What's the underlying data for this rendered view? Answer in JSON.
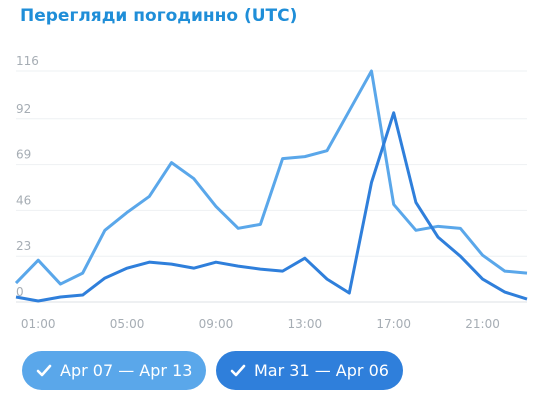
{
  "chart_data": {
    "type": "line",
    "title": "Перегляди погодинно (UTC)",
    "categories": [
      null,
      "01:00",
      null,
      null,
      null,
      "05:00",
      null,
      null,
      null,
      "09:00",
      null,
      null,
      null,
      "13:00",
      null,
      null,
      null,
      "17:00",
      null,
      null,
      null,
      "21:00",
      null,
      null
    ],
    "series": [
      {
        "name": "Apr 07 — Apr 13",
        "color": "#5aa7ea",
        "values": [
          9.5,
          21,
          9,
          14.5,
          36,
          45,
          53,
          70,
          62,
          48,
          37,
          39,
          72,
          73,
          76,
          96,
          116,
          49,
          36,
          38,
          37,
          23.5,
          15.5,
          14.5
        ]
      },
      {
        "name": "Mar 31 — Apr 06",
        "color": "#2f7fdb",
        "values": [
          2.5,
          0.5,
          2.5,
          3.5,
          12,
          17,
          20,
          19,
          17,
          20,
          18,
          16.5,
          15.5,
          22,
          11.5,
          4.5,
          60,
          95,
          50,
          32.5,
          23,
          11.5,
          5,
          1.5
        ]
      }
    ],
    "ylim": [
      0,
      116
    ],
    "yticks": [
      0,
      23,
      46,
      69,
      92,
      116
    ],
    "grid": true
  }
}
